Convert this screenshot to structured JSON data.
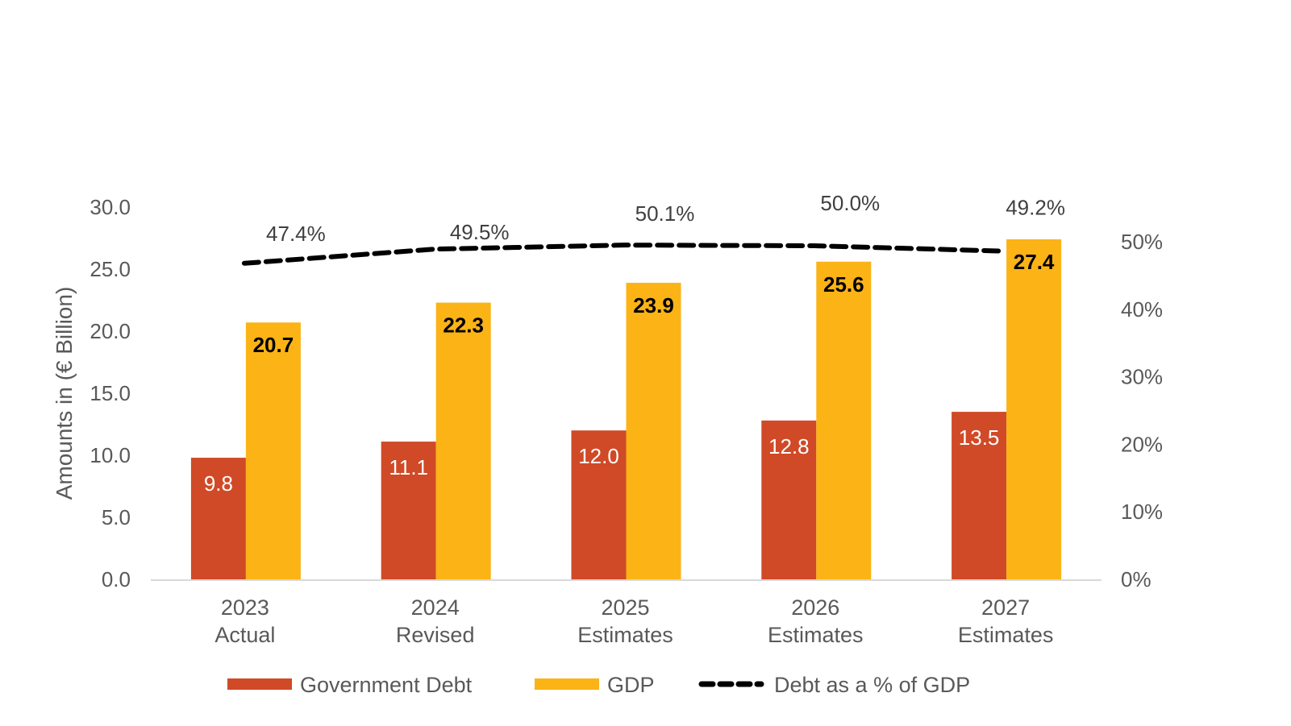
{
  "chart_data": {
    "type": "bar",
    "title": "",
    "categories": [
      [
        "2023",
        "Actual"
      ],
      [
        "2024",
        "Revised"
      ],
      [
        "2025",
        "Estimates"
      ],
      [
        "2026",
        "Estimates"
      ],
      [
        "2027",
        "Estimates"
      ]
    ],
    "series": [
      {
        "name": "Government Debt",
        "type": "bar",
        "axis": "left",
        "color": "#D04A27",
        "values": [
          9.8,
          11.1,
          12.0,
          12.8,
          13.5
        ],
        "labels": [
          "9.8",
          "11.1",
          "12.0",
          "12.8",
          "13.5"
        ]
      },
      {
        "name": "GDP",
        "type": "bar",
        "axis": "left",
        "color": "#FBB316",
        "values": [
          20.7,
          22.3,
          23.9,
          25.6,
          27.4
        ],
        "labels": [
          "20.7",
          "22.3",
          "23.9",
          "25.6",
          "27.4"
        ]
      },
      {
        "name": "Debt as a % of GDP",
        "type": "line",
        "style": "dashed",
        "axis": "right",
        "color": "#000000",
        "values": [
          47.4,
          49.5,
          50.1,
          50.0,
          49.2
        ],
        "labels": [
          "47.4%",
          "49.5%",
          "50.1%",
          "50.0%",
          "49.2%"
        ]
      }
    ],
    "ylabel": "Amounts in (€ Billion)",
    "xlabel": "",
    "ylim": [
      0,
      30
    ],
    "yticks": [
      "0.0",
      "5.0",
      "10.0",
      "15.0",
      "20.0",
      "25.0",
      "30.0"
    ],
    "y2lim": [
      0,
      55
    ],
    "y2ticks": [
      "0%",
      "10%",
      "20%",
      "30%",
      "40%",
      "50%"
    ],
    "grid": false,
    "legend": {
      "position": "bottom",
      "entries": [
        "Government Debt",
        "GDP",
        "Debt as a % of GDP"
      ]
    },
    "axis_color": "#D9D9D9"
  }
}
